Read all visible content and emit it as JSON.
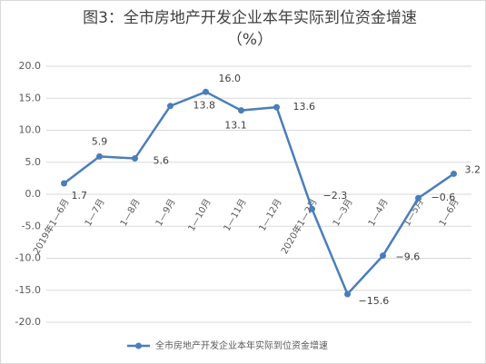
{
  "chart_data": {
    "type": "line",
    "title": "图3：全市房地产开发企业本年实际到位资金增速",
    "subtitle": "（%）",
    "categories": [
      "2019年1—6月",
      "1—7月",
      "1—8月",
      "1—9月",
      "1—10月",
      "1—11月",
      "1—12月",
      "2020年1—2月",
      "1—3月",
      "1—4月",
      "1—5月",
      "1—6月"
    ],
    "series": [
      {
        "name": "全市房地产开发企业本年实际到位资金增速",
        "color": "#4a7ebb",
        "values": [
          1.7,
          5.9,
          5.6,
          13.8,
          16.0,
          13.1,
          13.6,
          -2.3,
          -15.6,
          -9.6,
          -0.6,
          3.2
        ],
        "value_labels": [
          "1.7",
          "5.9",
          "5.6",
          "13.8",
          "16.0",
          "13.1",
          "13.6",
          "−2.3",
          "−15.6",
          "−9.6",
          "−0.6",
          "3.2"
        ]
      }
    ],
    "ylim": [
      -20,
      20
    ],
    "yticks": [
      {
        "value": -20,
        "label": "-20.0"
      },
      {
        "value": -15,
        "label": "-15.0"
      },
      {
        "value": -10,
        "label": "-10.0"
      },
      {
        "value": -5,
        "label": "-5.0"
      },
      {
        "value": 0,
        "label": "0.0"
      },
      {
        "value": 5,
        "label": "5.0"
      },
      {
        "value": 10,
        "label": "10.0"
      },
      {
        "value": 15,
        "label": "15.0"
      },
      {
        "value": 20,
        "label": "20.0"
      }
    ],
    "grid": true,
    "legend": "bottom"
  }
}
